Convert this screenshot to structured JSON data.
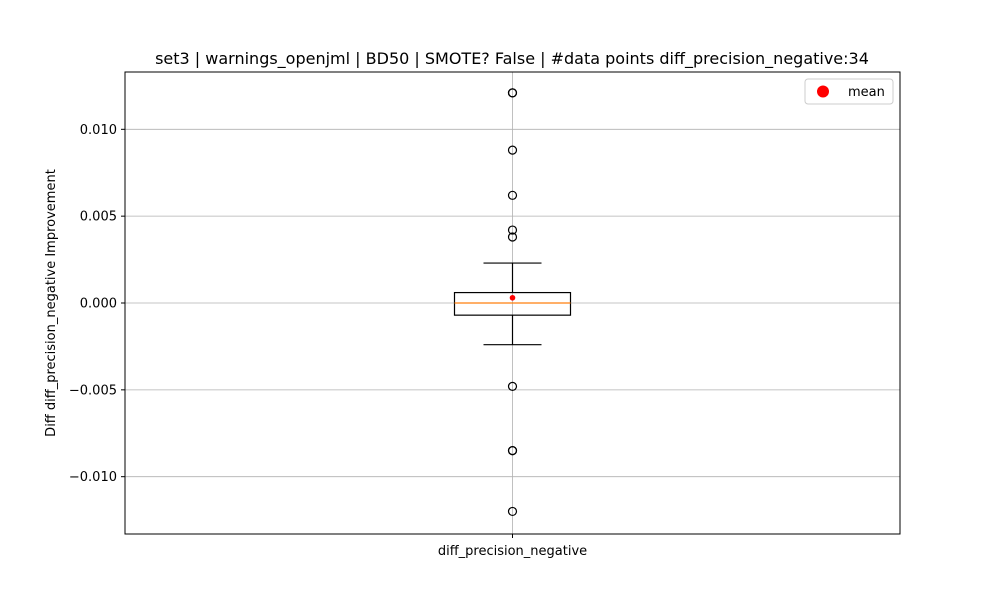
{
  "chart_data": {
    "type": "box",
    "title": "set3 | warnings_openjml | BD50 | SMOTE? False | #data points diff_precision_negative:34",
    "xlabel": "",
    "ylabel": "Diff diff_precision_negative Improvement",
    "categories": [
      "diff_precision_negative"
    ],
    "ylim": [
      -0.0133,
      0.0133
    ],
    "yticks": [
      -0.01,
      -0.005,
      0.0,
      0.005,
      0.01
    ],
    "ytick_labels": [
      "−0.010",
      "−0.005",
      "0.000",
      "0.005",
      "0.010"
    ],
    "grid": true,
    "legend": {
      "position": "top-right",
      "entries": [
        {
          "label": "mean",
          "color": "#ff0000",
          "marker": "circle"
        }
      ]
    },
    "box": {
      "whisker_low": -0.0024,
      "q1": -0.0007,
      "median": 0.0,
      "q3": 0.0006,
      "whisker_high": 0.0023,
      "mean": 0.0003
    },
    "outliers": [
      0.0121,
      0.0121,
      0.0088,
      0.0062,
      0.0042,
      0.0038,
      -0.0048,
      -0.0085,
      -0.0085,
      -0.012
    ],
    "colors": {
      "box": "#000000",
      "median": "#ff7f0e",
      "mean": "#ff0000",
      "grid": "#b0b0b0"
    }
  }
}
